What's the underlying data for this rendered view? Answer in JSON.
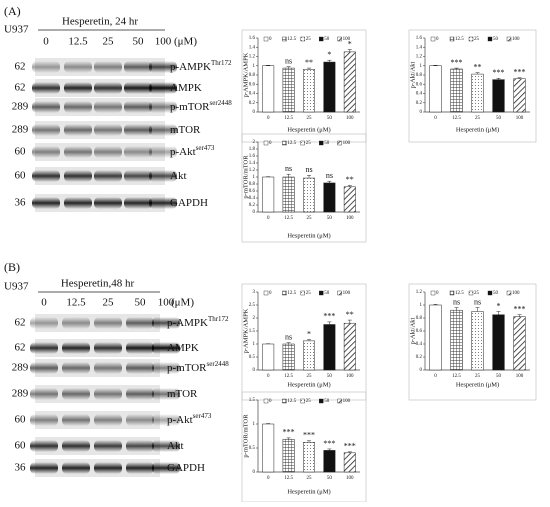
{
  "panels": [
    {
      "label": "(A)",
      "cell_line": "U937",
      "treatment": "Hesperetin, 24 hr",
      "doses": [
        "0",
        "12.5",
        "25",
        "50",
        "100"
      ],
      "unit": "(μM)",
      "blots": [
        {
          "mw": "62",
          "name": "p-AMPK",
          "site": "Thr172"
        },
        {
          "mw": "62",
          "name": "AMPK"
        },
        {
          "mw": "289",
          "name": "p-mTOR",
          "site": "ser2448"
        },
        {
          "mw": "289",
          "name": "mTOR"
        },
        {
          "mw": "60",
          "name": "p-Akt",
          "site": "ser473"
        },
        {
          "mw": "60",
          "name": "Akt"
        },
        {
          "mw": "36",
          "name": "GAPDH"
        }
      ]
    },
    {
      "label": "(B)",
      "cell_line": "U937",
      "treatment": "Hesperetin,48 hr",
      "doses": [
        "0",
        "12.5",
        "25",
        "50",
        "100"
      ],
      "unit": "(μM)",
      "blots": [
        {
          "mw": "62",
          "name": "p-AMPK",
          "site": "Thr172"
        },
        {
          "mw": "62",
          "name": "AMPK"
        },
        {
          "mw": "289",
          "name": "p-mTOR",
          "site": "ser2448"
        },
        {
          "mw": "289",
          "name": "mTOR"
        },
        {
          "mw": "60",
          "name": "p-Akt",
          "site": "ser473"
        },
        {
          "mw": "60",
          "name": "Akt"
        },
        {
          "mw": "36",
          "name": "GAPDH"
        }
      ]
    }
  ],
  "chart_data": [
    {
      "type": "bar",
      "ylabel": "p-AMPK/AMPK",
      "xlabel": "Hesperetin (μM)",
      "categories": [
        "0",
        "12.5",
        "25",
        "50",
        "100"
      ],
      "values": [
        1,
        0.95,
        0.92,
        1.08,
        1.3
      ],
      "errors": [
        0.01,
        0.03,
        0.03,
        0.04,
        0.05
      ],
      "annotations": [
        null,
        "ns",
        "**",
        "*",
        "*"
      ],
      "ylim": [
        0,
        1.6
      ],
      "yticks": [
        0,
        0.2,
        0.4,
        0.6,
        0.8,
        1,
        1.2,
        1.4,
        1.6
      ]
    },
    {
      "type": "bar",
      "ylabel": "p-Akt/Akt",
      "xlabel": "Hesperetin (μM)",
      "categories": [
        "0",
        "12.5",
        "25",
        "50",
        "100"
      ],
      "values": [
        1,
        0.93,
        0.82,
        0.7,
        0.72
      ],
      "errors": [
        0.01,
        0.02,
        0.03,
        0.03,
        0.02
      ],
      "annotations": [
        null,
        "***",
        "**",
        "***",
        "***"
      ],
      "ylim": [
        0,
        1.6
      ],
      "yticks": [
        0,
        0.2,
        0.4,
        0.6,
        0.8,
        1,
        1.2,
        1.4,
        1.6
      ]
    },
    {
      "type": "bar",
      "ylabel": "p-mTOR/mTOR",
      "xlabel": "Hesperetin (μM)",
      "categories": [
        "0",
        "12.5",
        "25",
        "50",
        "100"
      ],
      "values": [
        1,
        1,
        0.97,
        0.83,
        0.72
      ],
      "errors": [
        0.01,
        0.08,
        0.08,
        0.05,
        0.04
      ],
      "annotations": [
        null,
        "ns",
        "ns",
        "ns",
        "**"
      ],
      "ylim": [
        0,
        2
      ],
      "yticks": [
        0,
        0.2,
        0.4,
        0.6,
        0.8,
        1,
        1.2,
        1.4,
        1.6,
        1.8,
        2
      ]
    },
    {
      "type": "bar",
      "ylabel": "p-AMPK/AMPK",
      "xlabel": "Hesperetin (μM)",
      "categories": [
        "0",
        "12.5",
        "25",
        "50",
        "100"
      ],
      "values": [
        1,
        1,
        1.12,
        1.75,
        1.8
      ],
      "errors": [
        0.01,
        0.05,
        0.05,
        0.1,
        0.12
      ],
      "annotations": [
        null,
        "ns",
        "*",
        "***",
        "**"
      ],
      "ylim": [
        0,
        3
      ],
      "yticks": [
        0,
        0.5,
        1,
        1.5,
        2,
        2.5,
        3
      ]
    },
    {
      "type": "bar",
      "ylabel": "p-Akt/Akt",
      "xlabel": "Hesperetin (μM)",
      "categories": [
        "0",
        "12.5",
        "25",
        "50",
        "100"
      ],
      "values": [
        1,
        0.92,
        0.9,
        0.85,
        0.82
      ],
      "errors": [
        0.01,
        0.04,
        0.06,
        0.05,
        0.03
      ],
      "annotations": [
        null,
        "ns",
        "ns",
        "*",
        "***"
      ],
      "ylim": [
        0,
        1.2
      ],
      "yticks": [
        0,
        0.2,
        0.4,
        0.6,
        0.8,
        1,
        1.2
      ]
    },
    {
      "type": "bar",
      "ylabel": "p-mTOR/mTOR",
      "xlabel": "Hesperetin (μM)",
      "categories": [
        "0",
        "12.5",
        "25",
        "50",
        "100"
      ],
      "values": [
        1,
        0.68,
        0.62,
        0.45,
        0.4
      ],
      "errors": [
        0.01,
        0.03,
        0.03,
        0.03,
        0.02
      ],
      "annotations": [
        null,
        "***",
        "***",
        "***",
        "***"
      ],
      "ylim": [
        0,
        1.5
      ],
      "yticks": [
        0,
        0.5,
        1,
        1.5
      ]
    }
  ]
}
